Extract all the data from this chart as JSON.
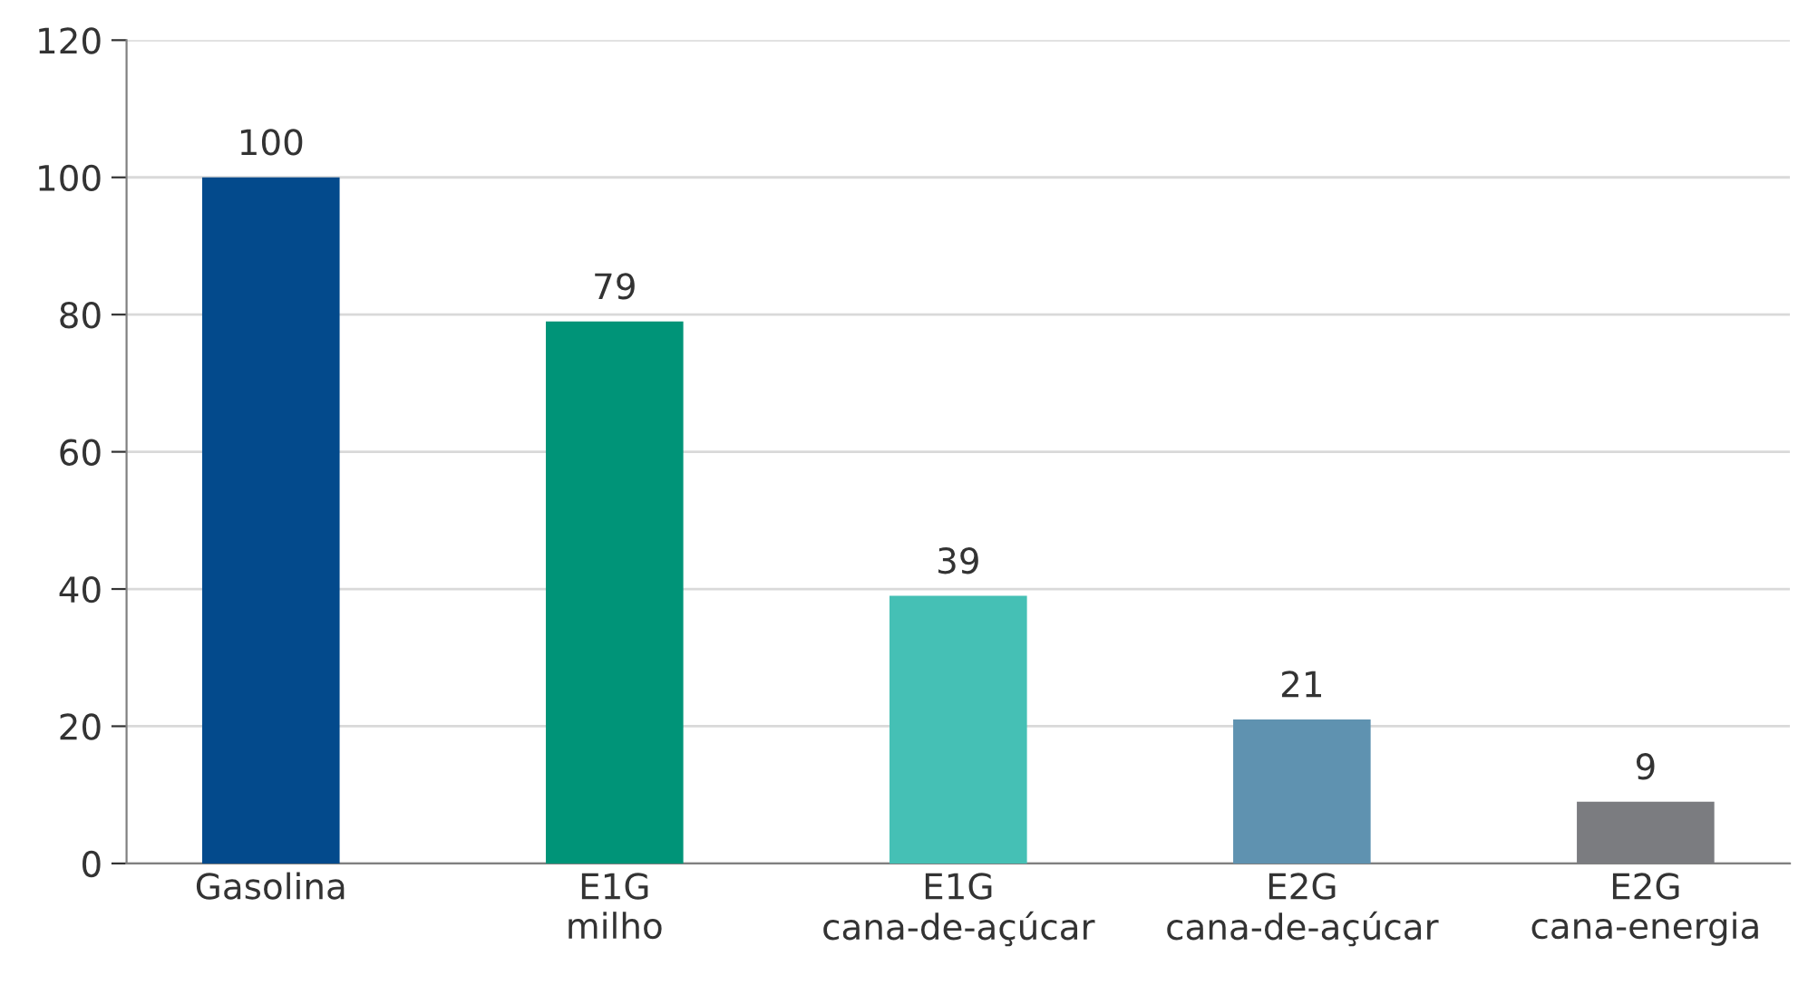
{
  "chart_data": {
    "type": "bar",
    "categories": [
      "Gasolina",
      "E1G\nmilho",
      "E1G\ncana-de-açúcar",
      "E2G\ncana-de-açúcar",
      "E2G\ncana-energia"
    ],
    "values": [
      100,
      79,
      39,
      21,
      9
    ],
    "colors": [
      "#034a8c",
      "#009478",
      "#45c0b5",
      "#5f92b0",
      "#7b7c80"
    ],
    "ylim": [
      0,
      120
    ],
    "yticks": [
      0,
      20,
      40,
      60,
      80,
      100,
      120
    ],
    "grid": "y",
    "data_labels": true
  }
}
